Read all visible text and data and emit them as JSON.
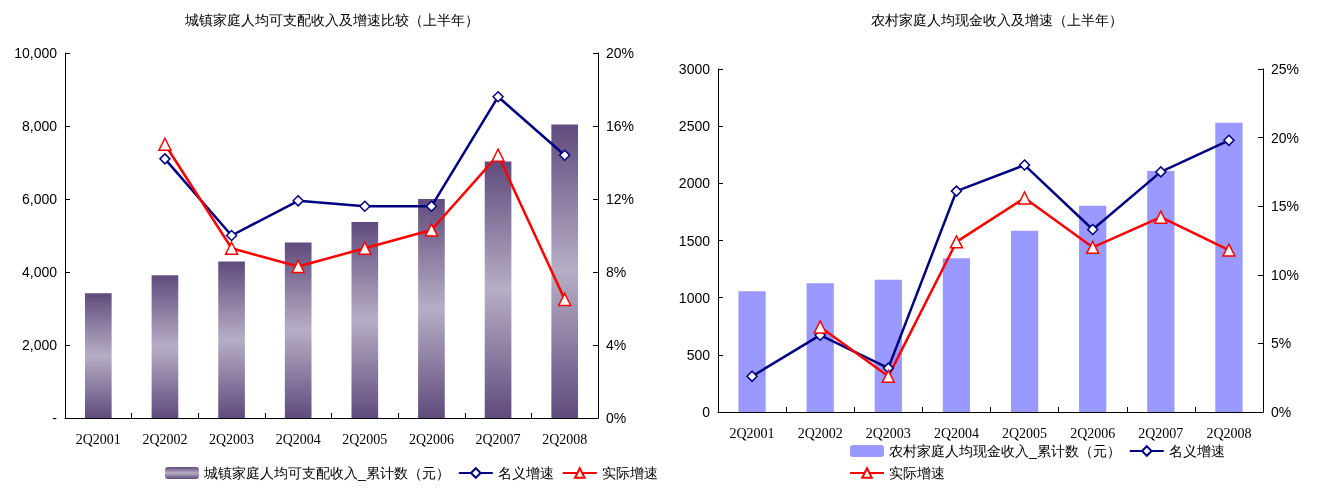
{
  "chart_data": [
    {
      "type": "bar",
      "title": "城镇家庭人均可支配收入及增速比较（上半年）",
      "categories": [
        "2Q2001",
        "2Q2002",
        "2Q2003",
        "2Q2004",
        "2Q2005",
        "2Q2006",
        "2Q2007",
        "2Q2008"
      ],
      "series": [
        {
          "name": "城镇家庭人均可支配收入_累计数（元）",
          "color": "#5f4b7d",
          "values": [
            3420,
            3910,
            4290,
            4810,
            5370,
            6000,
            7030,
            8040
          ]
        },
        {
          "name": "名义增速",
          "type": "line",
          "axis": "y2",
          "marker": "diamond",
          "color": "#000080",
          "values": [
            null,
            14.2,
            10.0,
            11.9,
            11.6,
            11.6,
            17.6,
            14.4
          ]
        },
        {
          "name": "实际增速",
          "type": "line",
          "axis": "y2",
          "marker": "triangle",
          "color": "#ff0000",
          "values": [
            null,
            15.0,
            9.3,
            8.3,
            9.3,
            10.3,
            14.4,
            6.5
          ]
        }
      ],
      "ylim": [
        0,
        10000
      ],
      "yticks": [
        {
          "value": 0,
          "label": "-"
        },
        {
          "value": 2000,
          "label": "2,000"
        },
        {
          "value": 4000,
          "label": "4,000"
        },
        {
          "value": 6000,
          "label": "6,000"
        },
        {
          "value": 8000,
          "label": "8,000"
        },
        {
          "value": 10000,
          "label": "10,000"
        }
      ],
      "y2lim": [
        0,
        20
      ],
      "y2ticks": [
        {
          "value": 0,
          "label": "0%"
        },
        {
          "value": 4,
          "label": "4%"
        },
        {
          "value": 8,
          "label": "8%"
        },
        {
          "value": 12,
          "label": "12%"
        },
        {
          "value": 16,
          "label": "16%"
        },
        {
          "value": 20,
          "label": "20%"
        }
      ],
      "grid": false,
      "legend": "bottom"
    },
    {
      "type": "bar",
      "title": "农村家庭人均现金收入及增速（上半年）",
      "categories": [
        "2Q2001",
        "2Q2002",
        "2Q2003",
        "2Q2004",
        "2Q2005",
        "2Q2006",
        "2Q2007",
        "2Q2008"
      ],
      "series": [
        {
          "name": "农村家庭人均现金收入_累计数（元）",
          "color": "#9999ff",
          "values": [
            1057,
            1126,
            1156,
            1345,
            1586,
            1804,
            2107,
            2530
          ]
        },
        {
          "name": "名义增速",
          "type": "line",
          "axis": "y2",
          "marker": "diamond",
          "color": "#000080",
          "values": [
            2.6,
            5.6,
            3.2,
            16.1,
            18.0,
            13.3,
            17.5,
            19.8
          ]
        },
        {
          "name": "实际增速",
          "type": "line",
          "axis": "y2",
          "marker": "triangle",
          "color": "#ff0000",
          "values": [
            null,
            6.2,
            2.6,
            12.4,
            15.6,
            12.0,
            14.2,
            11.8
          ]
        }
      ],
      "ylim": [
        0,
        3000
      ],
      "yticks": [
        0,
        500,
        1000,
        1500,
        2000,
        2500,
        3000
      ],
      "y2lim": [
        0,
        25
      ],
      "y2ticks": [
        {
          "value": 0,
          "label": "0%"
        },
        {
          "value": 5,
          "label": "5%"
        },
        {
          "value": 10,
          "label": "10%"
        },
        {
          "value": 15,
          "label": "15%"
        },
        {
          "value": 20,
          "label": "20%"
        },
        {
          "value": 25,
          "label": "25%"
        }
      ],
      "grid": false,
      "legend": "bottom"
    }
  ]
}
